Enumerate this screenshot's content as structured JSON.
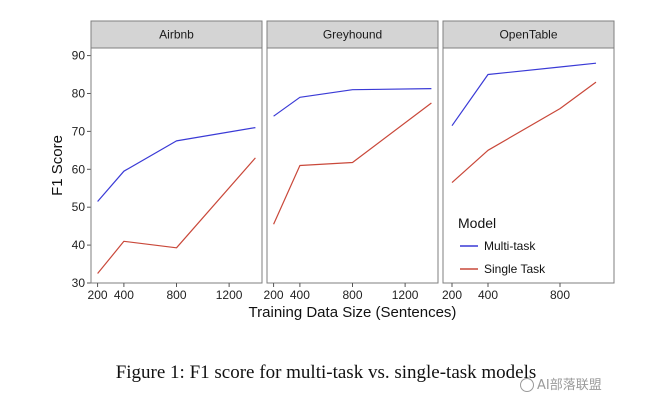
{
  "figure": {
    "caption": "Figure 1: F1 score for multi-task vs. single-task models"
  },
  "watermark": {
    "text": "AI部落联盟"
  },
  "chart_data": {
    "type": "line",
    "xlabel": "Training Data Size (Sentences)",
    "ylabel": "F1 Score",
    "ylim": [
      30,
      92
    ],
    "yticks": [
      30,
      40,
      50,
      60,
      70,
      80,
      90
    ],
    "grid": false,
    "legend": {
      "title": "Model",
      "placement": "bottom-right",
      "entries": [
        {
          "name": "Multi-task",
          "color": "#3a3ad6"
        },
        {
          "name": "Single Task",
          "color": "#c9483a"
        }
      ]
    },
    "colors": {
      "panel_background": "#ffffff",
      "panel_border": "#7f7f7f",
      "strip_background": "#d4d4d4",
      "multi_task": "#3a3ad6",
      "single_task": "#c9483a"
    },
    "panels": [
      {
        "title": "Airbnb",
        "xlim": [
          150,
          1450
        ],
        "xticks": [
          200,
          400,
          800,
          1200
        ],
        "series": [
          {
            "name": "Multi-task",
            "x": [
              200,
              400,
              800,
              1400
            ],
            "values": [
              51.5,
              59.5,
              67.5,
              71
            ]
          },
          {
            "name": "Single Task",
            "x": [
              200,
              400,
              800,
              1400
            ],
            "values": [
              32.5,
              41,
              39.3,
              63
            ]
          }
        ]
      },
      {
        "title": "Greyhound",
        "xlim": [
          150,
          1450
        ],
        "xticks": [
          200,
          400,
          800,
          1200
        ],
        "series": [
          {
            "name": "Multi-task",
            "x": [
              200,
              400,
              800,
              1400
            ],
            "values": [
              74,
              79,
              81,
              81.3
            ]
          },
          {
            "name": "Single Task",
            "x": [
              200,
              400,
              800,
              1400
            ],
            "values": [
              45.5,
              61,
              61.8,
              77.5
            ]
          }
        ]
      },
      {
        "title": "OpenTable",
        "xlim": [
          150,
          1100
        ],
        "xticks": [
          200,
          400,
          800
        ],
        "series": [
          {
            "name": "Multi-task",
            "x": [
              200,
              400,
              800,
              1000
            ],
            "values": [
              71.5,
              85,
              87,
              88
            ]
          },
          {
            "name": "Single Task",
            "x": [
              200,
              400,
              800,
              1000
            ],
            "values": [
              56.5,
              65,
              76,
              83
            ]
          }
        ]
      }
    ]
  }
}
